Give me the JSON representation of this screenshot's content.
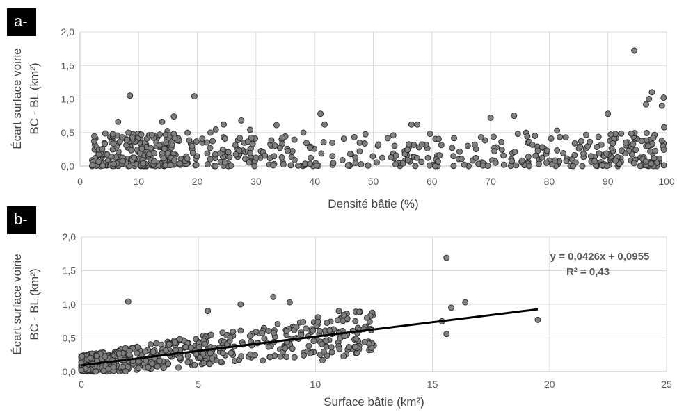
{
  "panels": [
    {
      "tag": "a-",
      "chart_data": {
        "type": "scatter",
        "xlabel": "Densité bâtie (%)",
        "ylabel_lines": [
          "Écart surface voirie",
          "BC - BL (km²)"
        ],
        "xlim": [
          0,
          100
        ],
        "ylim": [
          0,
          2
        ],
        "x_ticks": [
          "0",
          "10",
          "20",
          "30",
          "40",
          "50",
          "60",
          "70",
          "80",
          "90",
          "100"
        ],
        "y_ticks": [
          "0,0",
          "0,5",
          "1,0",
          "1,5",
          "2,0"
        ],
        "grid": true,
        "marker_color": "#7f7f7f",
        "notable_points": [
          {
            "x": 8.5,
            "y": 1.05
          },
          {
            "x": 19.5,
            "y": 1.04
          },
          {
            "x": 41,
            "y": 0.78
          },
          {
            "x": 41.7,
            "y": 0.62
          },
          {
            "x": 27.5,
            "y": 0.68
          },
          {
            "x": 94.5,
            "y": 1.72
          },
          {
            "x": 97.5,
            "y": 1.1
          },
          {
            "x": 99.5,
            "y": 1.02
          },
          {
            "x": 97,
            "y": 1.0
          },
          {
            "x": 90,
            "y": 0.78
          },
          {
            "x": 74,
            "y": 0.75
          },
          {
            "x": 70,
            "y": 0.72
          },
          {
            "x": 96.5,
            "y": 0.92
          },
          {
            "x": 6.5,
            "y": 0.66
          },
          {
            "x": 16,
            "y": 0.74
          },
          {
            "x": 56.5,
            "y": 0.62
          },
          {
            "x": 57.5,
            "y": 0.62
          },
          {
            "x": 33.5,
            "y": 0.61
          },
          {
            "x": 24.5,
            "y": 0.62
          },
          {
            "x": 14,
            "y": 0.66
          },
          {
            "x": 99.2,
            "y": 0.9
          }
        ],
        "bulk_description_y_range": [
          0,
          0.55
        ]
      }
    },
    {
      "tag": "b-",
      "chart_data": {
        "type": "scatter",
        "xlabel": "Surface bâtie (km²)",
        "ylabel_lines": [
          "Écart surface voirie",
          "BC - BL (km²)"
        ],
        "xlim": [
          0,
          25
        ],
        "ylim": [
          0,
          2
        ],
        "x_ticks": [
          "0",
          "5",
          "10",
          "15",
          "20",
          "25"
        ],
        "y_ticks": [
          "0,0",
          "0,5",
          "1,0",
          "1,5",
          "2,0"
        ],
        "grid": true,
        "marker_color": "#7f7f7f",
        "trendline": {
          "slope": 0.0426,
          "intercept": 0.0955,
          "x_range": [
            0,
            19.5
          ],
          "r2": 0.43
        },
        "equation_text": "y = 0,0426x  + 0,0955",
        "r2_text": "R² = 0,43",
        "notable_points": [
          {
            "x": 15.6,
            "y": 1.69
          },
          {
            "x": 16.4,
            "y": 1.03
          },
          {
            "x": 15.8,
            "y": 0.95
          },
          {
            "x": 15.4,
            "y": 0.75
          },
          {
            "x": 15.6,
            "y": 0.56
          },
          {
            "x": 19.5,
            "y": 0.77
          },
          {
            "x": 8.2,
            "y": 1.11
          },
          {
            "x": 8.9,
            "y": 1.03
          },
          {
            "x": 6.8,
            "y": 1.0
          },
          {
            "x": 2.0,
            "y": 1.04
          },
          {
            "x": 5.4,
            "y": 0.9
          },
          {
            "x": 10.1,
            "y": 0.74
          },
          {
            "x": 10.3,
            "y": 0.17
          },
          {
            "x": 11.0,
            "y": 0.9
          },
          {
            "x": 11.2,
            "y": 0.23
          },
          {
            "x": 12.2,
            "y": 0.8
          },
          {
            "x": 11.7,
            "y": 0.37
          },
          {
            "x": 12.1,
            "y": 0.44
          }
        ]
      }
    }
  ]
}
